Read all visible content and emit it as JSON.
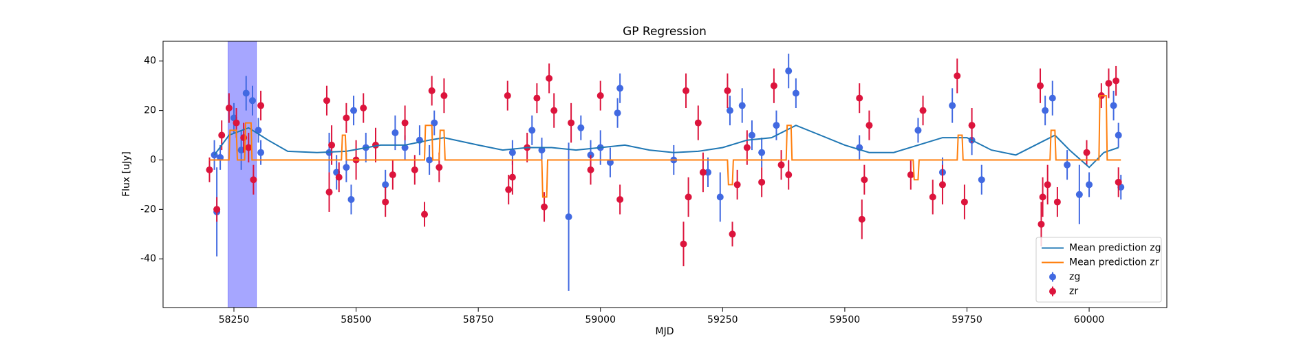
{
  "chart_data": {
    "type": "errorbar",
    "title": "GP Regression",
    "xlabel": "MJD",
    "ylabel": "Flux [uJy]",
    "xlim": [
      58105,
      60159
    ],
    "ylim": [
      -59.7,
      48
    ],
    "xticks": [
      58250,
      58500,
      58750,
      59000,
      59250,
      59500,
      59750,
      60000
    ],
    "yticks": [
      -40,
      -20,
      0,
      20,
      40
    ],
    "legend": "lower right",
    "highlight": {
      "xrange": [
        58238,
        58296
      ],
      "color": "#0000ff"
    },
    "series": [
      {
        "name": "Mean prediction zg",
        "kind": "line",
        "color": "#1f77b4",
        "x": [
          58210,
          58240,
          58280,
          58320,
          58360,
          58420,
          58480,
          58550,
          58600,
          58650,
          58680,
          58750,
          58800,
          58850,
          58900,
          58950,
          59000,
          59050,
          59100,
          59150,
          59200,
          59250,
          59300,
          59350,
          59400,
          59450,
          59500,
          59550,
          59600,
          59650,
          59700,
          59750,
          59800,
          59850,
          59900,
          59930,
          59960,
          60000,
          60030,
          60060
        ],
        "values": [
          2,
          10,
          13,
          8,
          3.5,
          3,
          3.5,
          6,
          6,
          8,
          9,
          6,
          4,
          5,
          5,
          4,
          5,
          6,
          4,
          3,
          3.5,
          5,
          8,
          9,
          14,
          10,
          6,
          3,
          3,
          6,
          9,
          9,
          4,
          2,
          7,
          10,
          4,
          -3,
          3,
          5
        ]
      },
      {
        "name": "Mean prediction zr",
        "kind": "line",
        "color": "#ff7f0e",
        "x": [
          58200,
          58240,
          58242,
          58255,
          58257,
          58272,
          58274,
          58285,
          58287,
          58470,
          58472,
          58478,
          58480,
          58640,
          58642,
          58655,
          58657,
          58670,
          58672,
          58680,
          58682,
          58880,
          58882,
          58890,
          58892,
          59260,
          59262,
          59270,
          59272,
          59380,
          59382,
          59390,
          59392,
          59640,
          59642,
          59650,
          59652,
          59730,
          59732,
          59740,
          59742,
          59920,
          59922,
          59930,
          59932,
          60020,
          60022,
          60035,
          60037,
          60065
        ],
        "values": [
          0,
          0,
          12,
          12,
          0,
          0,
          15,
          15,
          0,
          0,
          10,
          10,
          0,
          0,
          14,
          14,
          0,
          0,
          12,
          12,
          0,
          0,
          -15,
          -15,
          0,
          0,
          -10,
          -10,
          0,
          0,
          14,
          14,
          0,
          0,
          -8,
          -8,
          0,
          0,
          10,
          10,
          0,
          0,
          12,
          12,
          0,
          0,
          26,
          26,
          0,
          0
        ]
      },
      {
        "name": "zg",
        "kind": "errorbar",
        "color": "#4169e1",
        "x": [
          58210,
          58215,
          58222,
          58250,
          58265,
          58275,
          58288,
          58300,
          58305,
          58445,
          58460,
          58480,
          58490,
          58495,
          58520,
          58560,
          58580,
          58600,
          58630,
          58650,
          58660,
          58820,
          58860,
          58880,
          58935,
          58960,
          58980,
          59000,
          59020,
          59035,
          59040,
          59150,
          59220,
          59245,
          59265,
          59290,
          59310,
          59330,
          59360,
          59385,
          59400,
          59530,
          59650,
          59700,
          59720,
          59760,
          59780,
          59910,
          59925,
          59955,
          59980,
          60000,
          60050,
          60060,
          60065
        ],
        "values": [
          2,
          -21,
          1,
          17,
          4,
          27,
          24,
          12,
          3,
          3,
          -5,
          -3,
          -16,
          20,
          5,
          -10,
          11,
          5,
          8,
          0,
          15,
          3,
          12,
          4,
          -23,
          13,
          2,
          5,
          -1,
          19,
          29,
          0,
          -5,
          -15,
          20,
          22,
          10,
          3,
          14,
          36,
          27,
          5,
          12,
          -5,
          22,
          8,
          -8,
          20,
          25,
          -2,
          -14,
          -10,
          22,
          10,
          -11
        ],
        "errors": [
          6,
          18,
          5,
          6,
          8,
          7,
          6,
          5,
          5,
          8,
          7,
          6,
          6,
          6,
          6,
          6,
          7,
          5,
          6,
          6,
          5,
          5,
          6,
          5,
          30,
          5,
          6,
          7,
          6,
          6,
          6,
          6,
          6,
          10,
          6,
          7,
          6,
          6,
          6,
          7,
          6,
          5,
          5,
          6,
          7,
          6,
          6,
          6,
          7,
          6,
          12,
          5,
          6,
          5,
          5
        ]
      },
      {
        "name": "zr",
        "kind": "errorbar",
        "color": "#dc143c",
        "x": [
          58200,
          58215,
          58225,
          58240,
          58255,
          58270,
          58280,
          58290,
          58305,
          58440,
          58445,
          58450,
          58465,
          58480,
          58500,
          58515,
          58540,
          58560,
          58575,
          58600,
          58620,
          58640,
          58655,
          58670,
          58680,
          58810,
          58812,
          58820,
          58850,
          58870,
          58885,
          58895,
          58905,
          58940,
          58980,
          59000,
          59040,
          59170,
          59175,
          59180,
          59200,
          59210,
          59260,
          59270,
          59280,
          59300,
          59330,
          59355,
          59370,
          59385,
          59530,
          59535,
          59540,
          59550,
          59635,
          59660,
          59680,
          59700,
          59730,
          59745,
          59760,
          59900,
          59902,
          59905,
          59915,
          59935,
          59995,
          60025,
          60040,
          60055,
          60060
        ],
        "values": [
          -4,
          -20,
          10,
          21,
          15,
          9,
          5,
          -8,
          22,
          24,
          -13,
          6,
          -7,
          17,
          0,
          21,
          6,
          -17,
          -6,
          15,
          -4,
          -22,
          28,
          -3,
          26,
          26,
          -12,
          -7,
          5,
          25,
          -19,
          33,
          20,
          15,
          -4,
          26,
          -16,
          -34,
          28,
          -15,
          15,
          -5,
          28,
          -30,
          -10,
          5,
          -9,
          30,
          -2,
          -6,
          25,
          -24,
          -8,
          14,
          -6,
          20,
          -15,
          -10,
          34,
          -17,
          14,
          30,
          -26,
          -15,
          -10,
          -17,
          3,
          26,
          31,
          32,
          -9
        ],
        "errors": [
          5,
          5,
          6,
          6,
          6,
          6,
          6,
          6,
          6,
          6,
          8,
          8,
          6,
          6,
          8,
          6,
          7,
          6,
          6,
          7,
          6,
          5,
          6,
          6,
          7,
          6,
          6,
          7,
          6,
          6,
          6,
          6,
          7,
          8,
          6,
          6,
          6,
          9,
          7,
          8,
          7,
          8,
          7,
          5,
          6,
          7,
          6,
          7,
          6,
          6,
          6,
          8,
          6,
          6,
          6,
          6,
          7,
          8,
          7,
          7,
          7,
          7,
          9,
          8,
          8,
          6,
          5,
          5,
          6,
          6,
          6
        ]
      }
    ]
  }
}
